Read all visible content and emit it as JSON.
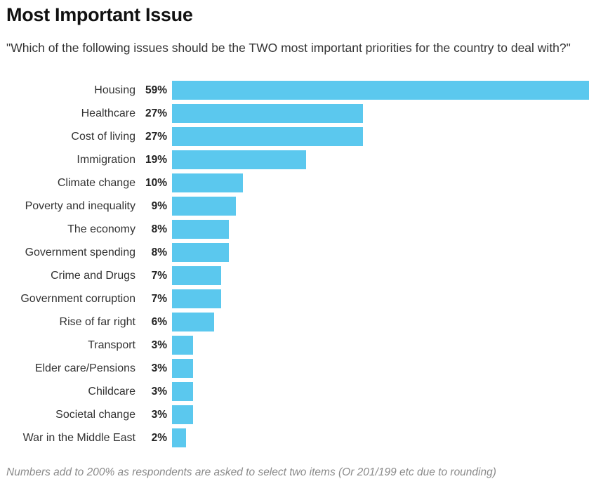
{
  "chart_data": {
    "type": "bar",
    "orientation": "horizontal",
    "title": "Most Important Issue",
    "subtitle": "\"Which of the following issues should be the TWO most important priorities for the country to deal with?\"",
    "categories": [
      "Housing",
      "Healthcare",
      "Cost of living",
      "Immigration",
      "Climate change",
      "Poverty and inequality",
      "The economy",
      "Government spending",
      "Crime and Drugs",
      "Government corruption",
      "Rise of far right",
      "Transport",
      "Elder care/Pensions",
      "Childcare",
      "Societal change",
      "War in the Middle East"
    ],
    "values": [
      59,
      27,
      27,
      19,
      10,
      9,
      8,
      8,
      7,
      7,
      6,
      3,
      3,
      3,
      3,
      2
    ],
    "value_labels": [
      "59%",
      "27%",
      "27%",
      "19%",
      "10%",
      "9%",
      "8%",
      "8%",
      "7%",
      "7%",
      "6%",
      "3%",
      "3%",
      "3%",
      "3%",
      "2%"
    ],
    "xlim": [
      0,
      59
    ],
    "unit": "%",
    "footnote": "Numbers add to 200% as respondents are asked to select two items (Or 201/199 etc due to rounding)",
    "bar_color": "#5bc8ee"
  }
}
